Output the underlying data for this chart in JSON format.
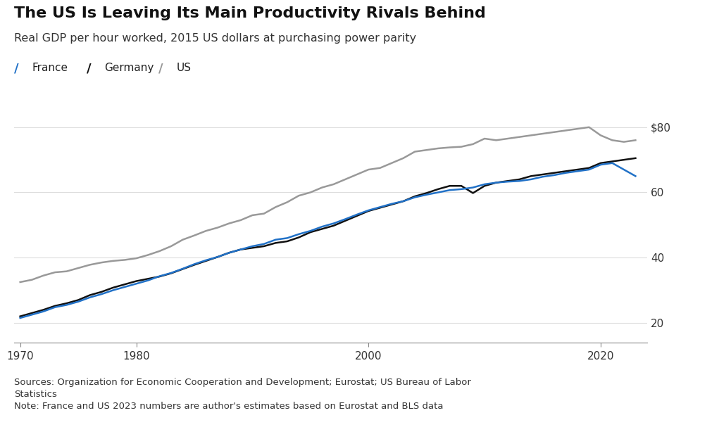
{
  "title": "The US Is Leaving Its Main Productivity Rivals Behind",
  "subtitle": "Real GDP per hour worked, 2015 US dollars at purchasing power parity",
  "legend_labels": [
    "France",
    "Germany",
    "US"
  ],
  "legend_colors": [
    "#2171c7",
    "#111111",
    "#999999"
  ],
  "yticks": [
    20,
    40,
    60,
    80
  ],
  "ytick_labels": [
    "20",
    "40",
    "60",
    "$80"
  ],
  "xticks": [
    1970,
    1980,
    2000,
    2020
  ],
  "xlim": [
    1969.5,
    2024
  ],
  "ylim": [
    14,
    84
  ],
  "source_text": "Sources: Organization for Economic Cooperation and Development; Eurostat; US Bureau of Labor\nStatistics\nNote: France and US 2023 numbers are author's estimates based on Eurostat and BLS data",
  "france_years": [
    1970,
    1971,
    1972,
    1973,
    1974,
    1975,
    1976,
    1977,
    1978,
    1979,
    1980,
    1981,
    1982,
    1983,
    1984,
    1985,
    1986,
    1987,
    1988,
    1989,
    1990,
    1991,
    1992,
    1993,
    1994,
    1995,
    1996,
    1997,
    1998,
    1999,
    2000,
    2001,
    2002,
    2003,
    2004,
    2005,
    2006,
    2007,
    2008,
    2009,
    2010,
    2011,
    2012,
    2013,
    2014,
    2015,
    2016,
    2017,
    2018,
    2019,
    2020,
    2021,
    2022,
    2023
  ],
  "france_values": [
    21.5,
    22.5,
    23.5,
    24.8,
    25.5,
    26.5,
    27.8,
    28.8,
    30.0,
    31.0,
    32.0,
    33.0,
    34.3,
    35.3,
    36.6,
    38.0,
    39.2,
    40.2,
    41.5,
    42.5,
    43.5,
    44.2,
    45.5,
    46.0,
    47.2,
    48.2,
    49.5,
    50.5,
    51.8,
    53.2,
    54.5,
    55.5,
    56.5,
    57.3,
    58.5,
    59.3,
    60.0,
    60.7,
    61.0,
    61.5,
    62.5,
    63.0,
    63.3,
    63.5,
    64.0,
    64.8,
    65.3,
    66.0,
    66.5,
    67.0,
    68.5,
    69.0,
    67.0,
    65.0
  ],
  "germany_years": [
    1970,
    1971,
    1972,
    1973,
    1974,
    1975,
    1976,
    1977,
    1978,
    1979,
    1980,
    1981,
    1982,
    1983,
    1984,
    1985,
    1986,
    1987,
    1988,
    1989,
    1990,
    1991,
    1992,
    1993,
    1994,
    1995,
    1996,
    1997,
    1998,
    1999,
    2000,
    2001,
    2002,
    2003,
    2004,
    2005,
    2006,
    2007,
    2008,
    2009,
    2010,
    2011,
    2012,
    2013,
    2014,
    2015,
    2016,
    2017,
    2018,
    2019,
    2020,
    2021,
    2022,
    2023
  ],
  "germany_values": [
    22.0,
    23.0,
    24.0,
    25.2,
    26.0,
    27.0,
    28.5,
    29.5,
    30.8,
    31.8,
    32.8,
    33.5,
    34.2,
    35.2,
    36.5,
    37.8,
    39.0,
    40.2,
    41.5,
    42.5,
    43.0,
    43.5,
    44.5,
    45.0,
    46.2,
    47.8,
    48.8,
    49.8,
    51.3,
    52.8,
    54.3,
    55.3,
    56.3,
    57.3,
    58.8,
    59.8,
    61.0,
    62.0,
    62.0,
    59.8,
    62.0,
    63.0,
    63.5,
    64.0,
    65.0,
    65.5,
    66.0,
    66.5,
    67.0,
    67.5,
    69.0,
    69.5,
    70.0,
    70.5
  ],
  "us_years": [
    1970,
    1971,
    1972,
    1973,
    1974,
    1975,
    1976,
    1977,
    1978,
    1979,
    1980,
    1981,
    1982,
    1983,
    1984,
    1985,
    1986,
    1987,
    1988,
    1989,
    1990,
    1991,
    1992,
    1993,
    1994,
    1995,
    1996,
    1997,
    1998,
    1999,
    2000,
    2001,
    2002,
    2003,
    2004,
    2005,
    2006,
    2007,
    2008,
    2009,
    2010,
    2011,
    2012,
    2013,
    2014,
    2015,
    2016,
    2017,
    2018,
    2019,
    2020,
    2021,
    2022,
    2023
  ],
  "us_values": [
    32.5,
    33.2,
    34.5,
    35.5,
    35.8,
    36.8,
    37.8,
    38.5,
    39.0,
    39.3,
    39.8,
    40.8,
    42.0,
    43.5,
    45.5,
    46.8,
    48.2,
    49.2,
    50.5,
    51.5,
    53.0,
    53.5,
    55.5,
    57.0,
    59.0,
    60.0,
    61.5,
    62.5,
    64.0,
    65.5,
    67.0,
    67.5,
    69.0,
    70.5,
    72.5,
    73.0,
    73.5,
    73.8,
    74.0,
    74.8,
    76.5,
    76.0,
    76.5,
    77.0,
    77.5,
    78.0,
    78.5,
    79.0,
    79.5,
    80.0,
    77.5,
    76.0,
    75.5,
    76.0
  ],
  "france_color": "#2171c7",
  "germany_color": "#111111",
  "us_color": "#999999",
  "line_width": 1.8,
  "background_color": "#ffffff",
  "plot_bg_color": "#ffffff",
  "title_fontsize": 16,
  "subtitle_fontsize": 11.5,
  "legend_fontsize": 11,
  "tick_fontsize": 11,
  "source_fontsize": 9.5
}
